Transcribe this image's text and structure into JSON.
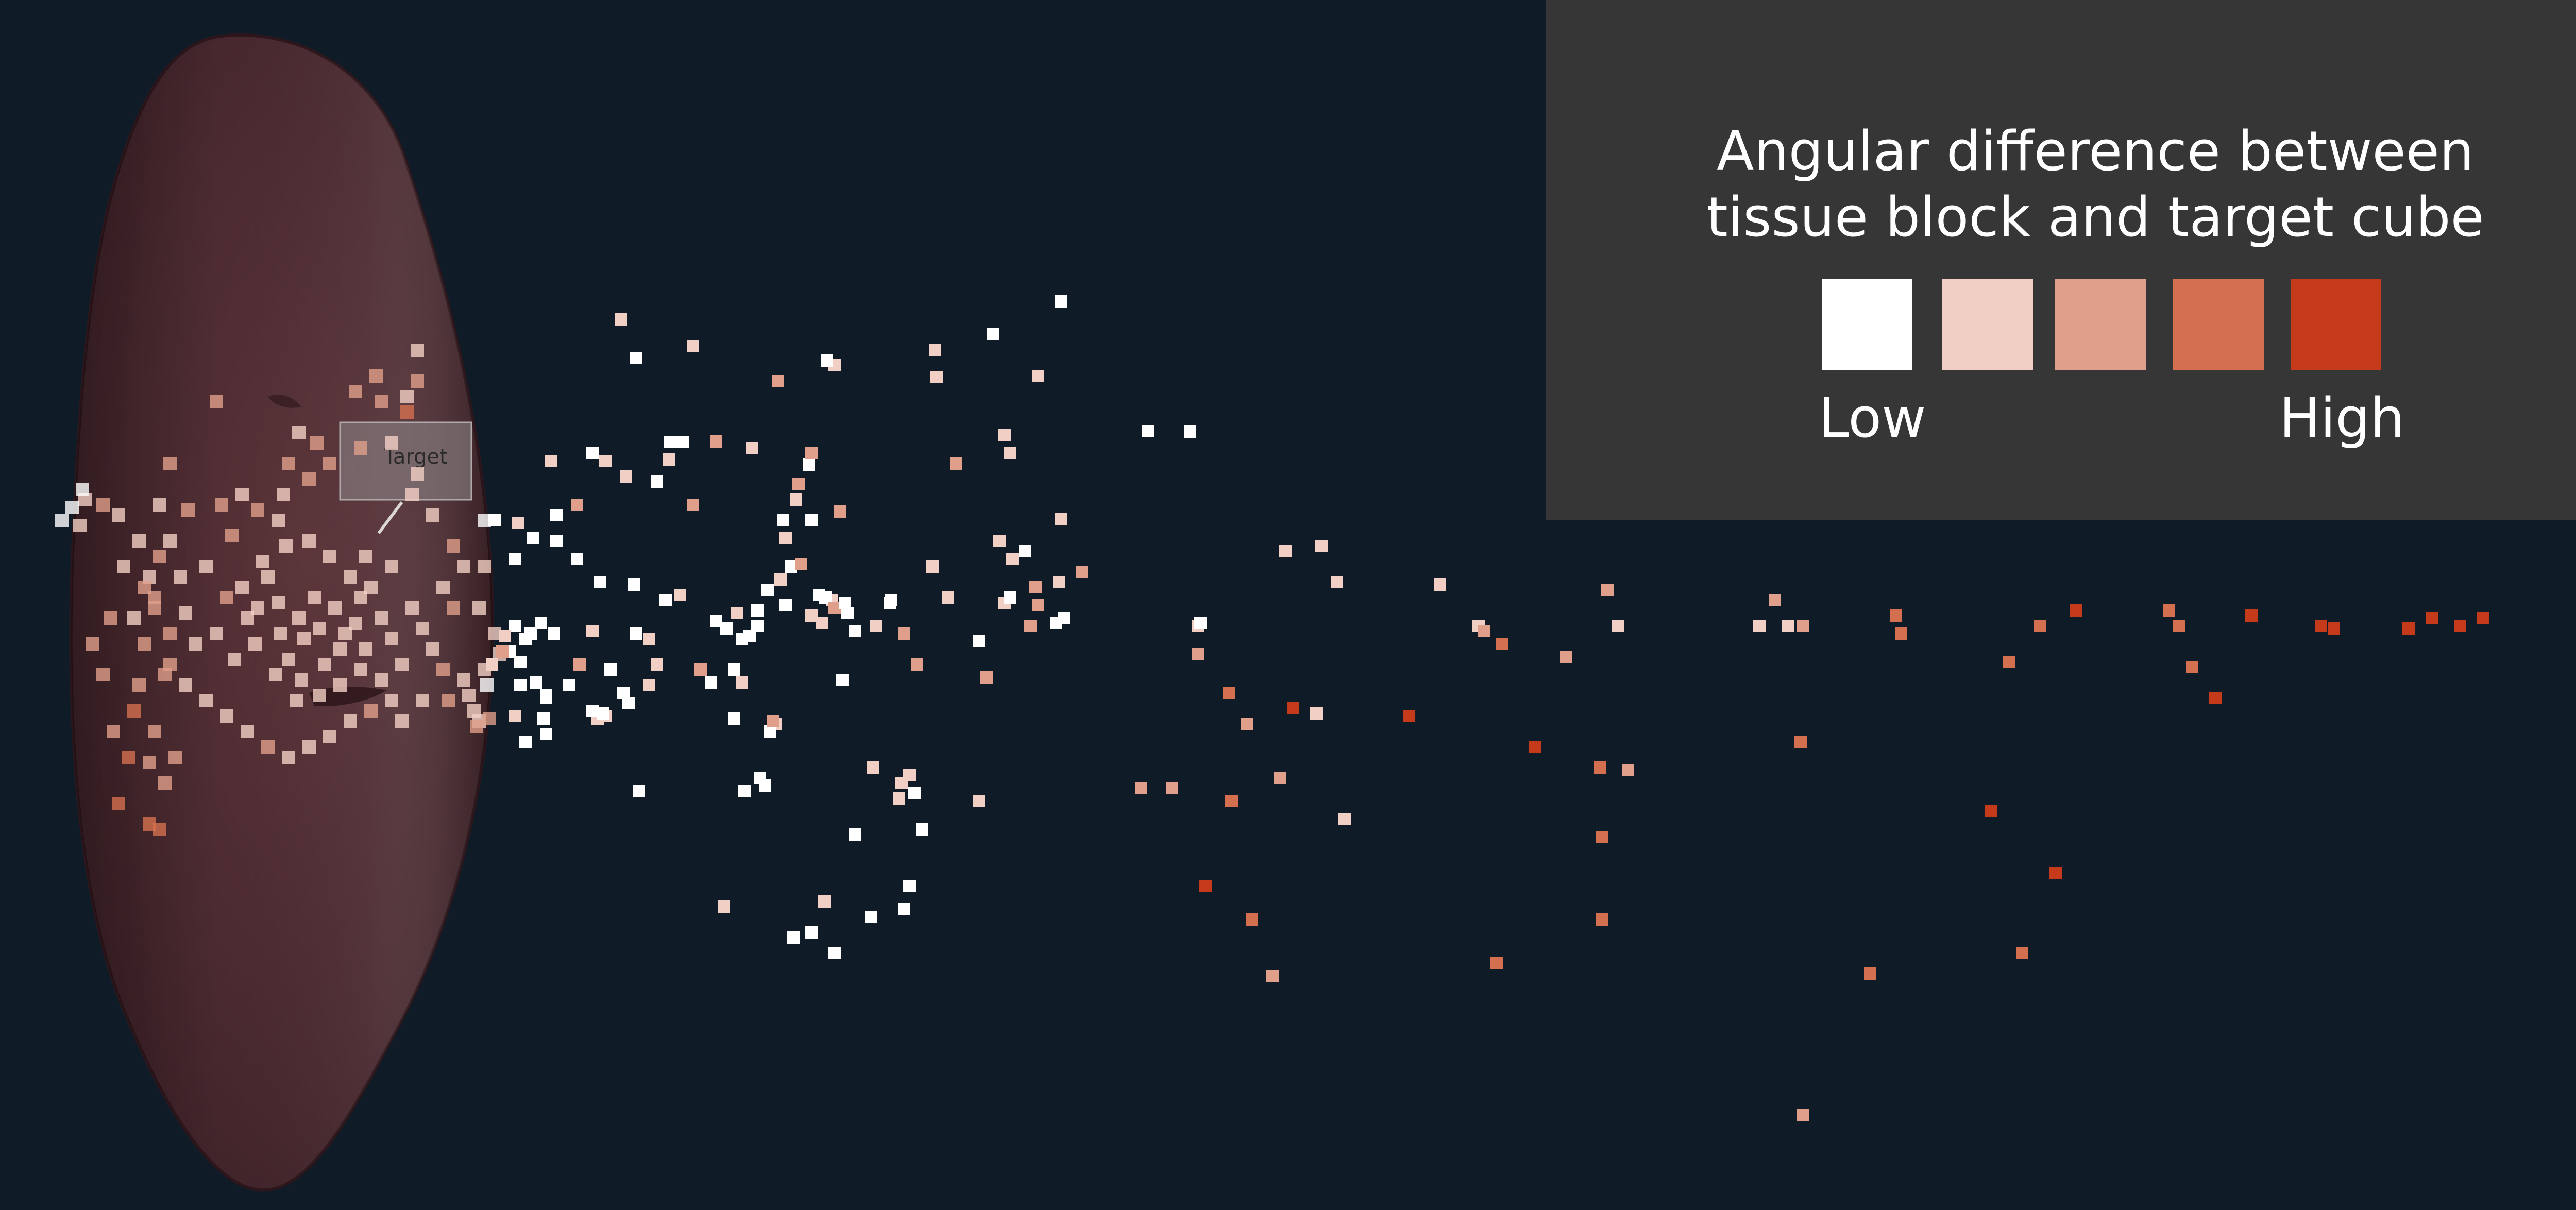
{
  "legend": {
    "title_line1": "Angular difference between",
    "title_line2": "tissue block and target cube",
    "low_label": "Low",
    "high_label": "High",
    "colors": [
      "#ffffff",
      "#f2cfc4",
      "#e09f8a",
      "#d4704f",
      "#c43a1a"
    ]
  },
  "organ": {
    "target_label": "Target",
    "fill_color": "#4a2a30"
  },
  "chart_data": {
    "type": "scatter",
    "title": "",
    "xlabel": "",
    "ylabel": "",
    "grid": false,
    "legend_placement": "top-right",
    "color_scale": {
      "name": "Angular difference between tissue block and target cube",
      "from_label": "Low",
      "to_label": "High",
      "levels": 5
    },
    "coordinate_note": "Points are blocks positioned in the 3D scene; x increases to the right, y increases downward (image-plane units, range 0-5134 by 0-2349). Value = color level 0 (Low) to 4 (High).",
    "points": [
      [
        1205,
        620,
        1
      ],
      [
        1235,
        695,
        0
      ],
      [
        1345,
        672,
        1
      ],
      [
        1510,
        740,
        2
      ],
      [
        1620,
        708,
        1
      ],
      [
        1605,
        700,
        0
      ],
      [
        1815,
        680,
        1
      ],
      [
        1818,
        732,
        1
      ],
      [
        1928,
        648,
        0
      ],
      [
        2060,
        585,
        0
      ],
      [
        1300,
        858,
        0
      ],
      [
        1325,
        858,
        0
      ],
      [
        1298,
        892,
        1
      ],
      [
        1390,
        857,
        2
      ],
      [
        1460,
        870,
        1
      ],
      [
        1520,
        1010,
        0
      ],
      [
        1570,
        902,
        0
      ],
      [
        1575,
        880,
        2
      ],
      [
        1630,
        993,
        2
      ],
      [
        1525,
        1045,
        1
      ],
      [
        1345,
        980,
        2
      ],
      [
        1728,
        1170,
        0
      ],
      [
        1755,
        1230,
        2
      ],
      [
        1810,
        1100,
        1
      ],
      [
        1940,
        1050,
        1
      ],
      [
        1965,
        1085,
        1
      ],
      [
        1990,
        1070,
        0
      ],
      [
        2015,
        1175,
        2
      ],
      [
        2010,
        1140,
        2
      ],
      [
        2055,
        1130,
        1
      ],
      [
        1080,
        1000,
        0
      ],
      [
        1080,
        1050,
        0
      ],
      [
        1120,
        1085,
        0
      ],
      [
        1230,
        1135,
        0
      ],
      [
        1235,
        1230,
        0
      ],
      [
        1260,
        1240,
        1
      ],
      [
        1292,
        1165,
        0
      ],
      [
        1380,
        1325,
        0
      ],
      [
        1425,
        1300,
        0
      ],
      [
        1440,
        1325,
        1
      ],
      [
        1445,
        1535,
        0
      ],
      [
        1475,
        1510,
        0
      ],
      [
        1485,
        1525,
        0
      ],
      [
        1695,
        1490,
        1
      ],
      [
        1745,
        1550,
        1
      ],
      [
        1750,
        1520,
        1
      ],
      [
        1765,
        1505,
        1
      ],
      [
        1775,
        1540,
        0
      ],
      [
        1790,
        1610,
        0
      ],
      [
        1765,
        1720,
        0
      ],
      [
        1755,
        1765,
        0
      ],
      [
        1600,
        1750,
        1
      ],
      [
        1540,
        1820,
        0
      ],
      [
        1575,
        1810,
        0
      ],
      [
        1620,
        1850,
        0
      ],
      [
        1690,
        1780,
        0
      ],
      [
        1405,
        1760,
        1
      ],
      [
        1660,
        1620,
        0
      ],
      [
        1900,
        1555,
        1
      ],
      [
        1275,
        1290,
        1
      ],
      [
        1505,
        1405,
        1
      ],
      [
        1495,
        1420,
        0
      ],
      [
        1500,
        1400,
        2
      ],
      [
        1360,
        1300,
        2
      ],
      [
        1915,
        1315,
        2
      ],
      [
        2100,
        1110,
        2
      ],
      [
        2065,
        1200,
        0
      ],
      [
        2565,
        1060,
        1
      ],
      [
        2595,
        1130,
        1
      ],
      [
        2325,
        1215,
        1
      ],
      [
        2330,
        1210,
        0
      ],
      [
        2325,
        1270,
        2
      ],
      [
        2385,
        1345,
        3
      ],
      [
        2420,
        1405,
        2
      ],
      [
        2510,
        1375,
        4
      ],
      [
        2555,
        1385,
        1
      ],
      [
        2485,
        1510,
        2
      ],
      [
        2610,
        1590,
        1
      ],
      [
        2735,
        1390,
        4
      ],
      [
        2215,
        1530,
        2
      ],
      [
        2275,
        1530,
        2
      ],
      [
        2390,
        1555,
        3
      ],
      [
        2340,
        1720,
        4
      ],
      [
        2430,
        1785,
        3
      ],
      [
        2470,
        1895,
        2
      ],
      [
        2980,
        1450,
        4
      ],
      [
        3105,
        1490,
        3
      ],
      [
        3160,
        1495,
        2
      ],
      [
        3110,
        1625,
        3
      ],
      [
        3110,
        1785,
        3
      ],
      [
        2905,
        1870,
        3
      ],
      [
        2870,
        1215,
        1
      ],
      [
        2880,
        1225,
        2
      ],
      [
        2915,
        1250,
        3
      ],
      [
        3040,
        1275,
        2
      ],
      [
        3120,
        1145,
        2
      ],
      [
        3140,
        1215,
        1
      ],
      [
        3415,
        1215,
        1
      ],
      [
        3470,
        1215,
        1
      ],
      [
        3500,
        1215,
        2
      ],
      [
        3445,
        1165,
        2
      ],
      [
        3495,
        1440,
        3
      ],
      [
        3680,
        1195,
        3
      ],
      [
        3690,
        1230,
        3
      ],
      [
        3900,
        1285,
        3
      ],
      [
        3960,
        1215,
        3
      ],
      [
        4030,
        1185,
        4
      ],
      [
        4210,
        1185,
        3
      ],
      [
        4230,
        1215,
        3
      ],
      [
        4370,
        1195,
        4
      ],
      [
        4505,
        1215,
        4
      ],
      [
        4530,
        1220,
        4
      ],
      [
        4675,
        1220,
        4
      ],
      [
        4720,
        1200,
        4
      ],
      [
        4775,
        1215,
        4
      ],
      [
        4820,
        1200,
        4
      ],
      [
        5040,
        1215,
        4
      ],
      [
        4255,
        1295,
        3
      ],
      [
        4300,
        1355,
        4
      ],
      [
        3865,
        1575,
        4
      ],
      [
        3990,
        1695,
        4
      ],
      [
        3925,
        1850,
        3
      ],
      [
        3630,
        1890,
        3
      ],
      [
        3500,
        2165,
        2
      ],
      [
        2795,
        1135,
        1
      ],
      [
        2495,
        1070,
        1
      ],
      [
        2228,
        837,
        0
      ],
      [
        2310,
        838,
        0
      ],
      [
        2060,
        1008,
        1
      ],
      [
        1855,
        900,
        2
      ],
      [
        2015,
        730,
        1
      ],
      [
        1550,
        940,
        2
      ],
      [
        1950,
        845,
        1
      ],
      [
        1960,
        880,
        1
      ],
      [
        1215,
        925,
        1
      ],
      [
        1275,
        935,
        0
      ],
      [
        1545,
        970,
        1
      ],
      [
        1575,
        1010,
        0
      ],
      [
        1635,
        1320,
        0
      ],
      [
        1615,
        1165,
        1
      ],
      [
        1645,
        1190,
        0
      ],
      [
        1425,
        1395,
        0
      ],
      [
        1440,
        1240,
        0
      ],
      [
        1455,
        1235,
        0
      ],
      [
        1470,
        1215,
        0
      ],
      [
        1525,
        1175,
        0
      ],
      [
        1590,
        1155,
        0
      ],
      [
        1602,
        1160,
        0
      ],
      [
        1620,
        1180,
        2
      ],
      [
        1640,
        1170,
        0
      ],
      [
        1660,
        1225,
        0
      ],
      [
        1700,
        1215,
        1
      ],
      [
        1730,
        1165,
        0
      ],
      [
        1780,
        1290,
        2
      ],
      [
        1840,
        1160,
        1
      ],
      [
        1900,
        1245,
        0
      ],
      [
        1950,
        1170,
        1
      ],
      [
        2050,
        1210,
        0
      ],
      [
        2000,
        1215,
        2
      ],
      [
        1960,
        1160,
        0
      ],
      [
        990,
        1265,
        0
      ],
      [
        1010,
        1285,
        0
      ],
      [
        1020,
        1240,
        0
      ],
      [
        1040,
        1325,
        0
      ],
      [
        1060,
        1355,
        0
      ],
      [
        1075,
        1230,
        0
      ],
      [
        1060,
        1350,
        0
      ],
      [
        1105,
        1330,
        0
      ],
      [
        1150,
        1225,
        1
      ],
      [
        1185,
        1300,
        0
      ],
      [
        1160,
        1395,
        1
      ],
      [
        1210,
        1345,
        0
      ],
      [
        1220,
        1365,
        0
      ],
      [
        1260,
        1330,
        1
      ],
      [
        1010,
        1330,
        0
      ],
      [
        1030,
        1230,
        0
      ],
      [
        1000,
        1215,
        0
      ],
      [
        980,
        1235,
        1
      ],
      [
        975,
        1265,
        2
      ],
      [
        955,
        1290,
        1
      ],
      [
        1125,
        1290,
        2
      ],
      [
        1175,
        1390,
        1
      ],
      [
        1240,
        1535,
        0
      ],
      [
        1170,
        1385,
        0
      ],
      [
        1150,
        1380,
        0
      ],
      [
        1055,
        1395,
        0
      ],
      [
        1050,
        1210,
        0
      ],
      [
        1020,
        1440,
        0
      ],
      [
        1060,
        1425,
        0
      ],
      [
        1000,
        1390,
        1
      ],
      [
        960,
        1010,
        0
      ],
      [
        1000,
        1085,
        0
      ],
      [
        1005,
        1015,
        1
      ],
      [
        1035,
        1045,
        0
      ],
      [
        1070,
        895,
        1
      ],
      [
        1150,
        880,
        0
      ],
      [
        1175,
        895,
        1
      ],
      [
        1120,
        980,
        2
      ],
      [
        1165,
        1130,
        0
      ],
      [
        1320,
        1155,
        1
      ],
      [
        1390,
        1205,
        0
      ],
      [
        1410,
        1220,
        0
      ],
      [
        1430,
        1190,
        1
      ],
      [
        1470,
        1185,
        0
      ],
      [
        1490,
        1145,
        0
      ],
      [
        1515,
        1125,
        1
      ],
      [
        1535,
        1100,
        0
      ],
      [
        1555,
        1095,
        2
      ],
      [
        1575,
        1195,
        1
      ],
      [
        1595,
        1210,
        1
      ]
    ],
    "cluster_points": [
      [
        600,
        1050,
        1
      ],
      [
        640,
        1080,
        1
      ],
      [
        680,
        1120,
        1
      ],
      [
        540,
        1170,
        1
      ],
      [
        580,
        1200,
        1
      ],
      [
        620,
        1220,
        1
      ],
      [
        700,
        1160,
        1
      ],
      [
        740,
        1200,
        1
      ],
      [
        660,
        1260,
        1
      ],
      [
        560,
        1280,
        1
      ],
      [
        520,
        1120,
        1
      ],
      [
        610,
        1160,
        1
      ],
      [
        650,
        1180,
        1
      ],
      [
        690,
        1210,
        1
      ],
      [
        720,
        1140,
        1
      ],
      [
        760,
        1100,
        1
      ],
      [
        590,
        1240,
        1
      ],
      [
        630,
        1290,
        1
      ],
      [
        670,
        1230,
        1
      ],
      [
        710,
        1260,
        1
      ],
      [
        500,
        1180,
        1
      ],
      [
        545,
        1230,
        1
      ],
      [
        585,
        1320,
        1
      ],
      [
        760,
        1240,
        1
      ],
      [
        800,
        1180,
        1
      ],
      [
        820,
        1220,
        1
      ],
      [
        840,
        1260,
        1
      ],
      [
        780,
        1290,
        1
      ],
      [
        740,
        1320,
        1
      ],
      [
        700,
        1300,
        1
      ],
      [
        660,
        1330,
        1
      ],
      [
        620,
        1350,
        1
      ],
      [
        575,
        1360,
        1
      ],
      [
        535,
        1310,
        1
      ],
      [
        495,
        1250,
        1
      ],
      [
        480,
        1200,
        1
      ],
      [
        470,
        1140,
        1
      ],
      [
        510,
        1090,
        1
      ],
      [
        555,
        1060,
        1
      ],
      [
        710,
        1080,
        1
      ],
      [
        300,
        1160,
        2
      ],
      [
        330,
        1230,
        2
      ],
      [
        280,
        1250,
        2
      ],
      [
        320,
        1310,
        2
      ],
      [
        270,
        1330,
        2
      ],
      [
        260,
        1380,
        3
      ],
      [
        300,
        1420,
        2
      ],
      [
        340,
        1470,
        2
      ],
      [
        290,
        1480,
        2
      ],
      [
        320,
        1520,
        2
      ],
      [
        250,
        1470,
        3
      ],
      [
        230,
        1560,
        3
      ],
      [
        290,
        1600,
        3
      ],
      [
        310,
        1610,
        3
      ],
      [
        220,
        1420,
        2
      ],
      [
        200,
        1310,
        2
      ],
      [
        180,
        1250,
        2
      ],
      [
        215,
        1200,
        2
      ],
      [
        260,
        1200,
        1
      ],
      [
        350,
        1120,
        1
      ],
      [
        400,
        1100,
        1
      ],
      [
        450,
        1040,
        2
      ],
      [
        500,
        990,
        2
      ],
      [
        550,
        960,
        1
      ],
      [
        600,
        930,
        2
      ],
      [
        640,
        900,
        2
      ],
      [
        700,
        870,
        2
      ],
      [
        760,
        860,
        1
      ],
      [
        810,
        920,
        1
      ],
      [
        790,
        800,
        3
      ],
      [
        810,
        740,
        2
      ],
      [
        740,
        780,
        2
      ],
      [
        800,
        960,
        1
      ],
      [
        840,
        1000,
        1
      ],
      [
        880,
        1060,
        2
      ],
      [
        900,
        1100,
        1
      ],
      [
        860,
        1140,
        1
      ],
      [
        880,
        1180,
        2
      ],
      [
        860,
        1300,
        2
      ],
      [
        900,
        1320,
        1
      ],
      [
        870,
        1360,
        2
      ],
      [
        820,
        1360,
        1
      ],
      [
        780,
        1400,
        1
      ],
      [
        760,
        1360,
        1
      ],
      [
        720,
        1380,
        2
      ],
      [
        680,
        1400,
        1
      ],
      [
        640,
        1430,
        1
      ],
      [
        600,
        1450,
        1
      ],
      [
        560,
        1470,
        1
      ],
      [
        520,
        1450,
        2
      ],
      [
        480,
        1420,
        1
      ],
      [
        440,
        1390,
        1
      ],
      [
        400,
        1360,
        1
      ],
      [
        360,
        1330,
        1
      ],
      [
        330,
        1290,
        2
      ],
      [
        420,
        1230,
        1
      ],
      [
        440,
        1160,
        2
      ],
      [
        455,
        1280,
        1
      ],
      [
        380,
        1250,
        1
      ],
      [
        360,
        1190,
        1
      ],
      [
        420,
        780,
        2
      ],
      [
        330,
        900,
        2
      ],
      [
        310,
        980,
        1
      ],
      [
        330,
        1050,
        1
      ],
      [
        310,
        1080,
        2
      ],
      [
        270,
        1050,
        1
      ],
      [
        230,
        1000,
        1
      ],
      [
        200,
        980,
        2
      ],
      [
        165,
        970,
        1
      ],
      [
        120,
        1010,
        0
      ],
      [
        155,
        1020,
        1
      ],
      [
        160,
        950,
        0
      ],
      [
        140,
        985,
        0
      ],
      [
        240,
        1100,
        1
      ],
      [
        290,
        1120,
        1
      ],
      [
        280,
        1140,
        2
      ],
      [
        300,
        1180,
        2
      ],
      [
        560,
        900,
        2
      ],
      [
        615,
        860,
        2
      ],
      [
        690,
        760,
        2
      ],
      [
        730,
        730,
        2
      ],
      [
        810,
        680,
        1
      ],
      [
        790,
        770,
        1
      ],
      [
        580,
        840,
        1
      ],
      [
        540,
        1010,
        1
      ],
      [
        470,
        960,
        1
      ],
      [
        430,
        980,
        2
      ],
      [
        365,
        990,
        2
      ],
      [
        940,
        1010,
        0
      ],
      [
        940,
        1100,
        1
      ],
      [
        930,
        1180,
        1
      ],
      [
        960,
        1230,
        1
      ],
      [
        970,
        1270,
        1
      ],
      [
        940,
        1300,
        1
      ],
      [
        920,
        1380,
        1
      ],
      [
        930,
        1400,
        1
      ],
      [
        950,
        1395,
        2
      ],
      [
        945,
        1330,
        0
      ],
      [
        925,
        1410,
        2
      ],
      [
        910,
        1350,
        1
      ]
    ]
  }
}
